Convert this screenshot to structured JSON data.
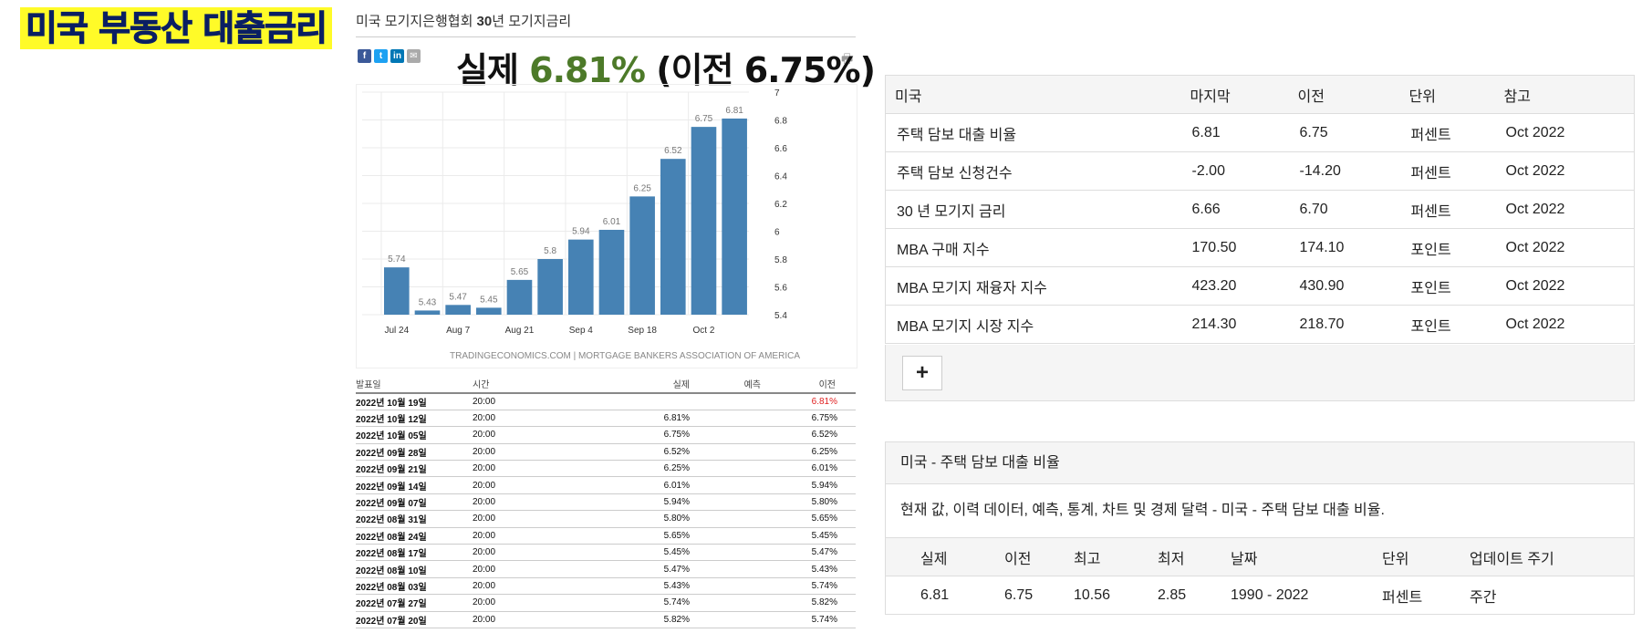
{
  "title": "미국 부동산 대출금리",
  "chart_panel": {
    "header_prefix": "미국 모기지은행협회 ",
    "header_bold": "30",
    "header_suffix": "년 모기지금리",
    "headline_prefix": "실제 ",
    "headline_value": "6.81%",
    "headline_suffix": " (이전 6.75%)",
    "share_icons": [
      {
        "name": "facebook-icon",
        "glyph": "f",
        "color": "#3b5998"
      },
      {
        "name": "twitter-icon",
        "glyph": "t",
        "color": "#1da1f2"
      },
      {
        "name": "linkedin-icon",
        "glyph": "in",
        "color": "#0077b5"
      },
      {
        "name": "email-icon",
        "glyph": "✉",
        "color": "#aaaaaa"
      }
    ],
    "print_icon": "print-icon"
  },
  "chart_data": {
    "type": "bar",
    "values": [
      5.74,
      5.43,
      5.47,
      5.45,
      5.65,
      5.8,
      5.94,
      6.01,
      6.25,
      6.52,
      6.75,
      6.81
    ],
    "value_labels": [
      "5.74",
      "5.43",
      "5.47",
      "5.45",
      "5.65",
      "5.8",
      "5.94",
      "6.01",
      "6.25",
      "6.52",
      "6.75",
      "6.81"
    ],
    "x_ticks": [
      {
        "index": 0,
        "label": "Jul 24"
      },
      {
        "index": 2,
        "label": "Aug 7"
      },
      {
        "index": 4,
        "label": "Aug 21"
      },
      {
        "index": 6,
        "label": "Sep 4"
      },
      {
        "index": 8,
        "label": "Sep 18"
      },
      {
        "index": 10,
        "label": "Oct 2"
      }
    ],
    "y_ticks": [
      "7",
      "6.8",
      "6.6",
      "6.4",
      "6.2",
      "6",
      "5.8",
      "5.6",
      "5.4"
    ],
    "ylim": [
      5.4,
      7
    ],
    "bar_color": "#4682b4",
    "grid": true,
    "source": "TRADINGECONOMICS.COM | MORTGAGE BANKERS ASSOCIATION OF AMERICA"
  },
  "history": {
    "headers": [
      "발표일",
      "시간",
      "실제",
      "예측",
      "이전"
    ],
    "rows": [
      {
        "date": "2022년 10월 19일",
        "time": "20:00",
        "actual": "",
        "forecast": "",
        "previous": "6.81%",
        "highlight": true
      },
      {
        "date": "2022년 10월 12일",
        "time": "20:00",
        "actual": "6.81%",
        "forecast": "",
        "previous": "6.75%"
      },
      {
        "date": "2022년 10월 05일",
        "time": "20:00",
        "actual": "6.75%",
        "forecast": "",
        "previous": "6.52%"
      },
      {
        "date": "2022년 09월 28일",
        "time": "20:00",
        "actual": "6.52%",
        "forecast": "",
        "previous": "6.25%"
      },
      {
        "date": "2022년 09월 21일",
        "time": "20:00",
        "actual": "6.25%",
        "forecast": "",
        "previous": "6.01%"
      },
      {
        "date": "2022년 09월 14일",
        "time": "20:00",
        "actual": "6.01%",
        "forecast": "",
        "previous": "5.94%"
      },
      {
        "date": "2022년 09월 07일",
        "time": "20:00",
        "actual": "5.94%",
        "forecast": "",
        "previous": "5.80%"
      },
      {
        "date": "2022년 08월 31일",
        "time": "20:00",
        "actual": "5.80%",
        "forecast": "",
        "previous": "5.65%"
      },
      {
        "date": "2022년 08월 24일",
        "time": "20:00",
        "actual": "5.65%",
        "forecast": "",
        "previous": "5.45%"
      },
      {
        "date": "2022년 08월 17일",
        "time": "20:00",
        "actual": "5.45%",
        "forecast": "",
        "previous": "5.47%"
      },
      {
        "date": "2022년 08월 10일",
        "time": "20:00",
        "actual": "5.47%",
        "forecast": "",
        "previous": "5.43%"
      },
      {
        "date": "2022년 08월 03일",
        "time": "20:00",
        "actual": "5.43%",
        "forecast": "",
        "previous": "5.74%"
      },
      {
        "date": "2022년 07월 27일",
        "time": "20:00",
        "actual": "5.74%",
        "forecast": "",
        "previous": "5.82%"
      },
      {
        "date": "2022년 07월 20일",
        "time": "20:00",
        "actual": "5.82%",
        "forecast": "",
        "previous": "5.74%"
      }
    ]
  },
  "indicators": {
    "headers": [
      "미국",
      "마지막",
      "이전",
      "단위",
      "참고"
    ],
    "rows": [
      [
        "주택 담보 대출 비율",
        "6.81",
        "6.75",
        "퍼센트",
        "Oct 2022"
      ],
      [
        "주택 담보 신청건수",
        "-2.00",
        "-14.20",
        "퍼센트",
        "Oct 2022"
      ],
      [
        "30 년 모기지 금리",
        "6.66",
        "6.70",
        "퍼센트",
        "Oct 2022"
      ],
      [
        "MBA 구매 지수",
        "170.50",
        "174.10",
        "포인트",
        "Oct 2022"
      ],
      [
        "MBA 모기지 재융자 지수",
        "423.20",
        "430.90",
        "포인트",
        "Oct 2022"
      ],
      [
        "MBA 모기지 시장 지수",
        "214.30",
        "218.70",
        "포인트",
        "Oct 2022"
      ]
    ],
    "add_label": "+"
  },
  "description": {
    "heading": "미국 - 주택 담보 대출 비율",
    "text": "현재 값, 이력 데이터, 예측, 통계, 차트 및 경제 달력 - 미국 - 주택 담보 대출 비율.",
    "summary_headers": [
      "실제",
      "이전",
      "최고",
      "최저",
      "날짜",
      "단위",
      "업데이트 주기"
    ],
    "summary_values": [
      "6.81",
      "6.75",
      "10.56",
      "2.85",
      "1990 - 2022",
      "퍼센트",
      "주간"
    ]
  }
}
